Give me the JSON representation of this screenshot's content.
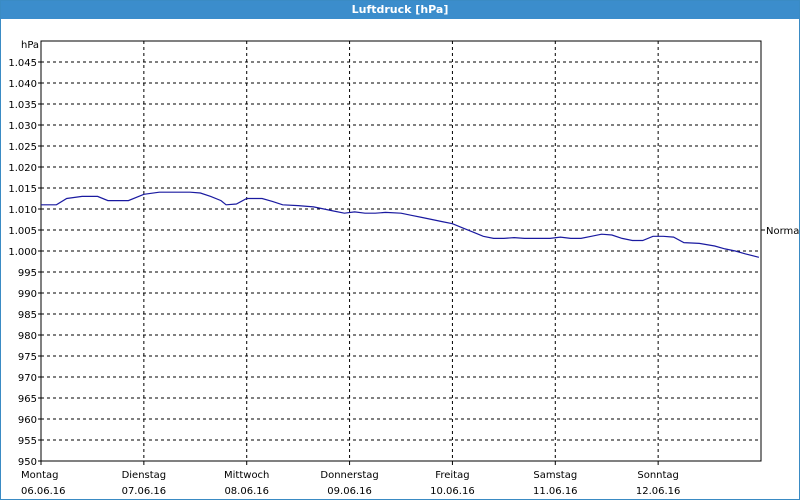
{
  "window": {
    "title": "Luftdruck [hPa]"
  },
  "chart_data": {
    "type": "line",
    "title": "Luftdruck [hPa]",
    "ylabel": "hPa",
    "ylim": [
      950,
      1050
    ],
    "yticks": [
      "950",
      "955",
      "960",
      "965",
      "970",
      "975",
      "980",
      "985",
      "990",
      "995",
      "1.000",
      "1.005",
      "1.010",
      "1.015",
      "1.020",
      "1.025",
      "1.030",
      "1.035",
      "1.040",
      "1.045"
    ],
    "xticks": [
      {
        "day": "Montag",
        "date": "06.06.16"
      },
      {
        "day": "Dienstag",
        "date": "07.06.16"
      },
      {
        "day": "Mittwoch",
        "date": "08.06.16"
      },
      {
        "day": "Donnerstag",
        "date": "09.06.16"
      },
      {
        "day": "Freitag",
        "date": "10.06.16"
      },
      {
        "day": "Samstag",
        "date": "11.06.16"
      },
      {
        "day": "Sonntag",
        "date": "12.06.16"
      }
    ],
    "reference": {
      "label": "Normal",
      "value": 1005
    },
    "grid": true,
    "series": [
      {
        "color": "#1a1aa0",
        "points": [
          [
            0.0,
            1011
          ],
          [
            0.15,
            1011
          ],
          [
            0.25,
            1012.5
          ],
          [
            0.4,
            1013
          ],
          [
            0.55,
            1013
          ],
          [
            0.65,
            1012
          ],
          [
            0.85,
            1012
          ],
          [
            1.0,
            1013.5
          ],
          [
            1.15,
            1014
          ],
          [
            1.3,
            1014
          ],
          [
            1.45,
            1014
          ],
          [
            1.55,
            1013.8
          ],
          [
            1.65,
            1013
          ],
          [
            1.75,
            1012
          ],
          [
            1.8,
            1011
          ],
          [
            1.9,
            1011.2
          ],
          [
            2.0,
            1012.5
          ],
          [
            2.15,
            1012.5
          ],
          [
            2.25,
            1011.8
          ],
          [
            2.35,
            1011
          ],
          [
            2.5,
            1010.8
          ],
          [
            2.65,
            1010.5
          ],
          [
            2.75,
            1010
          ],
          [
            2.85,
            1009.5
          ],
          [
            2.95,
            1009
          ],
          [
            3.05,
            1009.3
          ],
          [
            3.15,
            1009
          ],
          [
            3.25,
            1009
          ],
          [
            3.35,
            1009.2
          ],
          [
            3.5,
            1009
          ],
          [
            3.6,
            1008.5
          ],
          [
            3.7,
            1008
          ],
          [
            3.8,
            1007.5
          ],
          [
            3.9,
            1007
          ],
          [
            4.0,
            1006.5
          ],
          [
            4.1,
            1005.5
          ],
          [
            4.2,
            1004.5
          ],
          [
            4.3,
            1003.5
          ],
          [
            4.4,
            1003
          ],
          [
            4.5,
            1003
          ],
          [
            4.6,
            1003.2
          ],
          [
            4.7,
            1003
          ],
          [
            4.8,
            1003
          ],
          [
            4.95,
            1003
          ],
          [
            5.05,
            1003.3
          ],
          [
            5.15,
            1003
          ],
          [
            5.25,
            1003
          ],
          [
            5.35,
            1003.5
          ],
          [
            5.45,
            1004
          ],
          [
            5.55,
            1003.8
          ],
          [
            5.65,
            1003
          ],
          [
            5.75,
            1002.5
          ],
          [
            5.85,
            1002.5
          ],
          [
            5.95,
            1003.5
          ],
          [
            6.05,
            1003.5
          ],
          [
            6.15,
            1003.3
          ],
          [
            6.25,
            1002
          ],
          [
            6.4,
            1001.8
          ],
          [
            6.55,
            1001.2
          ],
          [
            6.65,
            1000.5
          ],
          [
            6.75,
            1000
          ],
          [
            6.85,
            999.3
          ],
          [
            6.98,
            998.5
          ]
        ]
      }
    ]
  }
}
